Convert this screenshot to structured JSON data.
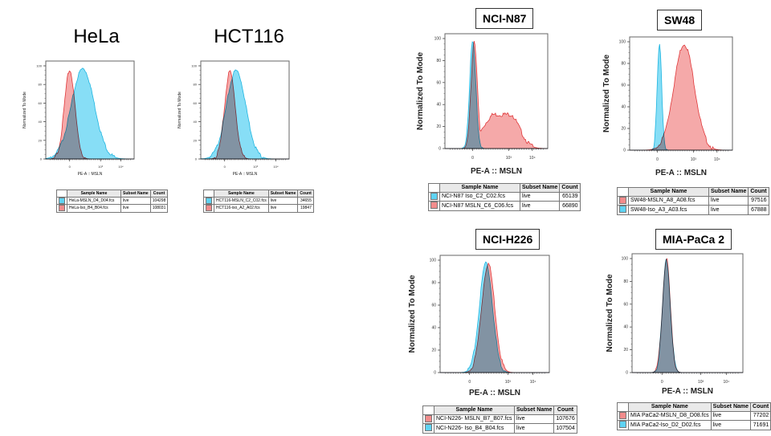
{
  "colors": {
    "iso_cyan": "#5fd3f3",
    "mesothelin_red": "#f28c8c",
    "cyan_line": "#1fb5e0",
    "red_line": "#e0383a"
  },
  "chart_data": [
    {
      "type": "area",
      "title": "HeLa",
      "xlabel": "PE-A :: MSLN",
      "ylabel": "Normalized To Mode",
      "ylim": [
        0,
        100
      ],
      "yticks": [
        "0",
        "20",
        "40",
        "60",
        "80",
        "100"
      ],
      "xticks": [
        "0",
        "10³",
        "10⁴"
      ],
      "series": [
        {
          "name": "HeLa-MSLN_D4_D04.fcs",
          "color": "cyan",
          "center": 0.42,
          "width": 0.13,
          "peak": 97
        },
        {
          "name": "HeLa-Iso_B4_B04.fcs",
          "color": "red",
          "center": 0.27,
          "width": 0.06,
          "peak": 95
        }
      ],
      "legend": {
        "headers": [
          "Sample Name",
          "Subset Name",
          "Count"
        ],
        "rows": [
          {
            "color": "cyan",
            "sample": "HeLa-MSLN_D4_D04.fcs",
            "subset": "live",
            "count": "104298"
          },
          {
            "color": "red",
            "sample": "HeLa-Iso_B4_B04.fcs",
            "subset": "live",
            "count": "108031"
          }
        ]
      }
    },
    {
      "type": "area",
      "title": "HCT116",
      "xlabel": "PE-A :: MSLN",
      "ylabel": "Normalized To Mode",
      "ylim": [
        0,
        100
      ],
      "yticks": [
        "0",
        "20",
        "40",
        "60",
        "80",
        "100"
      ],
      "xticks": [
        "0",
        "10³",
        "10⁴"
      ],
      "series": [
        {
          "name": "HCT116-MSLN_C2_C02.fcs",
          "color": "cyan",
          "center": 0.4,
          "width": 0.11,
          "peak": 95
        },
        {
          "name": "HCT116-iso_A2_A02.fcs",
          "color": "red",
          "center": 0.33,
          "width": 0.06,
          "peak": 94
        }
      ],
      "legend": {
        "headers": [
          "Sample Name",
          "Subset Name",
          "Count"
        ],
        "rows": [
          {
            "color": "cyan",
            "sample": "HCT116-MSLN_C2_C02.fcs",
            "subset": "live",
            "count": "34655"
          },
          {
            "color": "red",
            "sample": "HCT116-iso_A2_A02.fcs",
            "subset": "live",
            "count": "19847"
          }
        ]
      }
    },
    {
      "type": "area",
      "title": "NCI-N87",
      "xlabel": "PE-A :: MSLN",
      "ylabel": "Normalized To Mode",
      "ylim": [
        0,
        100
      ],
      "yticks": [
        "0",
        "20",
        "40",
        "60",
        "80",
        "100"
      ],
      "xticks": [
        "0",
        "10³",
        "10⁴"
      ],
      "series": [
        {
          "name": "NCI-N87 Iso_C2_C02.fcs",
          "color": "cyan",
          "center": 0.27,
          "width": 0.03,
          "peak": 97
        },
        {
          "name": "NCI-N87 MSLN_C6_C06.fcs",
          "color": "red",
          "bimodal": true,
          "peak": 98,
          "shoulder": 31
        }
      ],
      "legend": {
        "headers": [
          "Sample Name",
          "Subset Name",
          "Count"
        ],
        "rows": [
          {
            "color": "cyan",
            "sample": "NCI-N87 Iso_C2_C02.fcs",
            "subset": "live",
            "count": "65139"
          },
          {
            "color": "red",
            "sample": "NCI-N87 MSLN_C6_C06.fcs",
            "subset": "live",
            "count": "66890"
          }
        ]
      }
    },
    {
      "type": "area",
      "title": "SW48",
      "xlabel": "PE-A :: MSLN",
      "ylabel": "Normalized To Mode",
      "ylim": [
        0,
        100
      ],
      "yticks": [
        "0",
        "20",
        "40",
        "60",
        "80",
        "100"
      ],
      "xticks": [
        "0",
        "10³",
        "10⁴"
      ],
      "series": [
        {
          "name": "SW48-Iso_A3_A03.fcs",
          "color": "cyan",
          "center": 0.29,
          "width": 0.022,
          "peak": 97
        },
        {
          "name": "SW48-MSLN_A8_A08.fcs",
          "color": "red",
          "center": 0.53,
          "width": 0.1,
          "peak": 98
        }
      ],
      "legend": {
        "headers": [
          "Sample Name",
          "Subset Name",
          "Count"
        ],
        "rows": [
          {
            "color": "red",
            "sample": "SW48-MSLN_A8_A08.fcs",
            "subset": "live",
            "count": "97516"
          },
          {
            "color": "cyan",
            "sample": "SW48-Iso_A3_A03.fcs",
            "subset": "live",
            "count": "67888"
          }
        ]
      }
    },
    {
      "type": "area",
      "title": "NCI-H226",
      "xlabel": "PE-A :: MSLN",
      "ylabel": "Normalized To Mode",
      "ylim": [
        0,
        100
      ],
      "yticks": [
        "0",
        "20",
        "40",
        "60",
        "80",
        "100"
      ],
      "xticks": [
        "0",
        "10³",
        "10⁴"
      ],
      "series": [
        {
          "name": "NCI-N226- Iso_B4_B04.fcs",
          "color": "cyan",
          "center": 0.42,
          "width": 0.06,
          "peak": 98
        },
        {
          "name": "NCI-N226- MSLN_B7_B07.fcs",
          "color": "red",
          "center": 0.44,
          "width": 0.06,
          "peak": 97
        }
      ],
      "legend": {
        "headers": [
          "Sample Name",
          "Subset Name",
          "Count"
        ],
        "rows": [
          {
            "color": "red",
            "sample": "NCI-N226- MSLN_B7_B07.fcs",
            "subset": "live",
            "count": "107676"
          },
          {
            "color": "cyan",
            "sample": "NCI-N226- Iso_B4_B04.fcs",
            "subset": "live",
            "count": "107504"
          }
        ]
      }
    },
    {
      "type": "area",
      "title": "MIA-PaCa 2",
      "xlabel": "PE-A :: MSLN",
      "ylabel": "Normalized To Mode",
      "ylim": [
        0,
        100
      ],
      "yticks": [
        "0",
        "20",
        "40",
        "60",
        "80",
        "100"
      ],
      "xticks": [
        "0",
        "10³",
        "10⁴"
      ],
      "series": [
        {
          "name": "MIA PaCa2-Iso_D2_D02.fcs",
          "color": "cyan",
          "center": 0.31,
          "width": 0.035,
          "peak": 98
        },
        {
          "name": "MIA PaCa2-MSLN_D8_D08.fcs",
          "color": "red",
          "center": 0.31,
          "width": 0.035,
          "peak": 100
        }
      ],
      "legend": {
        "headers": [
          "Sample Name",
          "Subset Name",
          "Count"
        ],
        "rows": [
          {
            "color": "red",
            "sample": "MIA PaCa2-MSLN_D8_D08.fcs",
            "subset": "live",
            "count": "77202"
          },
          {
            "color": "cyan",
            "sample": "MIA PaCa2-Iso_D2_D02.fcs",
            "subset": "live",
            "count": "71691"
          }
        ]
      }
    }
  ]
}
